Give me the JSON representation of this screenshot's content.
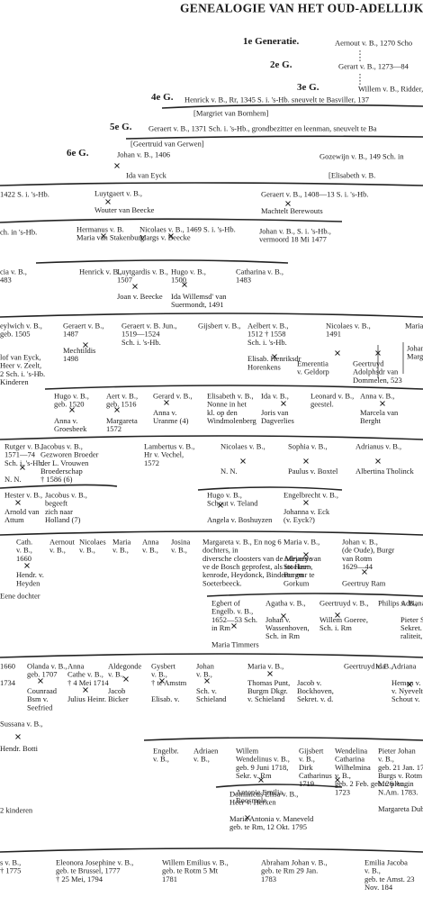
{
  "document": {
    "title": "GENEALOGIE VAN HET OUD-ADELLIJK",
    "generations": [
      {
        "label": "1e Generatie.",
        "person": "Aernout v. B., 1270 Scho"
      },
      {
        "label": "2e G.",
        "person": "Gerart v. B., 1273—84"
      },
      {
        "label": "3e G.",
        "person": "Willem v. B., Ridder, 1"
      },
      {
        "label": "4e G.",
        "person": "Henrick v. B., Rr, 1345 S. i. 's-Hb. sneuvelt te Basviller, 137"
      },
      {
        "label": "5e G.",
        "person": "Geraert v. B., 1371 Sch. i. 's-Hb., grondbezitter en leenman, sneuvelt te Ba"
      },
      {
        "label": "6e G.",
        "person": "Johan v. B., 1406"
      }
    ],
    "entries": [
      [
        "[Margriet van Bornhem]"
      ],
      [
        "[Geertruid van Gerwen]"
      ],
      [
        "Ida van Eyck"
      ],
      [
        "Gozewijn v. B., 149 Sch. in"
      ],
      [
        "[Elisabeth v. B."
      ],
      [
        "1422 S. i. 's-Hb."
      ],
      [
        "Luytgaert v. B.,",
        "",
        "Wouter van Beecke"
      ],
      [
        "Geraert v. B., 1408—13 S. i. 's-Hb.",
        "",
        "Machtelt Berewouts"
      ],
      [
        "ch. in 's-Hb."
      ],
      [
        "Hermanus v. B.",
        "Maria van Stakenburg"
      ],
      [
        "Nicolaes v. B., 1469 S. i. 's-Hb.",
        "Margs v. Beecke"
      ],
      [
        "Johan v. B., S. i. 's-Hb.,",
        "vermoord 18 Mi 1477"
      ],
      [
        "cia v. B.,",
        "483"
      ],
      [
        "Henrick v. B.,"
      ],
      [
        "Luytgardis v. B.,",
        "1507",
        "",
        "Joan v. Beecke"
      ],
      [
        "Hugo v. B.,",
        "1500",
        "",
        "Ida Willemsd' van",
        "Suermondt, 1491"
      ],
      [
        "Catharina v. B.,",
        "1483"
      ],
      [
        "eylwich v. B.,",
        "geb. 1505"
      ],
      [
        "Geraert v. B.,",
        "1487",
        "",
        "Mechtildis",
        "1498"
      ],
      [
        "Geraert v. B. Jun.,",
        "1519—1524",
        "Sch. i. 's-Hb."
      ],
      [
        "Gijsbert v. B.,"
      ],
      [
        "Aelbert v. B.,",
        "1512 † 1558",
        "Sch. i. 's-Hb.",
        "",
        "Elisab. Henriksdr",
        "Horenkens"
      ],
      [
        "Nicolaes v. B.,",
        "1491"
      ],
      [
        "Emerentia",
        "v. Geldorp"
      ],
      [
        "Geertruyd",
        "Adolphsdr van",
        "Dommelen, 523"
      ],
      [
        "Maria"
      ],
      [
        "Johan",
        "Marg"
      ],
      [
        "lof van Eyck,",
        "Heer v. Zeelt,",
        "2 Sch. i. 's-Hb.",
        "Kinderen"
      ],
      [
        "Hugo v. B.,",
        "geb. 1520",
        "",
        "Anna v.",
        "Groesbeek"
      ],
      [
        "Aert v. B.,",
        "geb. 1516",
        "",
        "Margareta",
        "1572"
      ],
      [
        "Gerard v. B.,",
        "",
        "Anna v.",
        "Uranme (4)"
      ],
      [
        "Elisabeth v. B.,",
        "Nonne in het",
        "kl. op den",
        "Windmolenberg"
      ],
      [
        "Ida v. B.,",
        "",
        "Joris van",
        "Dagverlies"
      ],
      [
        "Leonard v. B.,",
        "geestel."
      ],
      [
        "Anna v. B.,",
        "",
        "Marcela van",
        "Berght"
      ],
      [
        "Rutger v. B.,",
        "1571—74",
        "Sch. i. 's-Hb.",
        "",
        "N. N."
      ],
      [
        "Jacobus v. B.,",
        "Gezworen Broeder",
        "der L. Vrouwen",
        "Broederschap",
        "† 1586 (6)"
      ],
      [
        "Lambertus v. B.,",
        "Hr v. Vechel,",
        "1572"
      ],
      [
        "Nicolaes v. B.,",
        "",
        "",
        "N. N."
      ],
      [
        "Sophia v. B.,",
        "",
        "",
        "Paulus v. Boxtel"
      ],
      [
        "Adrianus v. B.,",
        "",
        "",
        "Albertina Tholinck"
      ],
      [
        "Hester v. B.,",
        "",
        "Arnold van",
        "Attum"
      ],
      [
        "Jacobus v. B.,",
        "begeeft",
        "zich naar",
        "Holland (7)"
      ],
      [
        "Hugo v. B.,",
        "Schout v. Teland",
        "",
        "Angela v. Boshuyzen"
      ],
      [
        "Engelbrecht v. B.,",
        "",
        "Johanna v. Eck",
        "(v. Eyck?)"
      ],
      [
        "Cath.",
        "v. B.,",
        "1660",
        "",
        "Hendr. v.",
        "Heyden"
      ],
      [
        "Aernout",
        "v. B.,"
      ],
      [
        "Nicolaes",
        "v. B.,"
      ],
      [
        "Maria",
        "v. B.,"
      ],
      [
        "Anna",
        "v. B.,"
      ],
      [
        "Josina",
        "v. B.,"
      ],
      [
        "Margareta v. B.,  En nog 6",
        "dochters, in",
        "diversche cloosters van de Meyerye",
        "ve de Bosch geprofest, als tot Heer-",
        "kenrode, Heydonck, Binderen en",
        "Soeterbeeck."
      ],
      [
        "Maria v. B.,",
        "",
        "Adriaen van",
        "Stockum,",
        "Burgmr te",
        "Gorkum"
      ],
      [
        "Johan v. B.,",
        "(de Oude), Burgr",
        "van Rotm",
        "1629—44",
        "",
        "Geertruy Ram"
      ],
      [
        "Eene dochter"
      ],
      [
        "Egbert of",
        "Engelb. v. B.,",
        "1652—53 Sch.",
        "in Rm",
        "",
        "Maria Timmers"
      ],
      [
        "Agatha v. B.,",
        "",
        "Johan v.",
        "Wassenhoven,",
        "Sch. in Rm"
      ],
      [
        "Geertruyd v. B.,",
        "",
        "Willem Goeree,",
        "Sch. i. Rm"
      ],
      [
        "Philips v. B.,"
      ],
      [
        "Adriana",
        "",
        "Pieter S",
        "Sekret. de",
        "raliteit,"
      ],
      [
        "1660",
        "",
        "1734"
      ],
      [
        "Olanda v. B.,",
        "geb. 1707",
        "",
        "Counraad",
        "Bsm v.",
        "Seefried"
      ],
      [
        "Anna",
        "Cathe v. B.,",
        "† 4 Mei 1714",
        "",
        "Julius Heinr."
      ],
      [
        "Aldegonde",
        "v. B.,",
        "",
        "Jacob",
        "Bicker"
      ],
      [
        "Gysbert",
        "v. B.,",
        "† te Amstm",
        "",
        "Elisab. v."
      ],
      [
        "Johan",
        "v. B.,",
        "",
        "Sch. v.",
        "Schieland"
      ],
      [
        "Maria v. B.,",
        "",
        "Thomas Punt,",
        "Burgm Dkgr.",
        "v. Schieland"
      ],
      [
        "",
        "",
        "Jacob v.",
        "Bockhoven,",
        "Sekret. v. d."
      ],
      [
        "Geertruyd v. B.,"
      ],
      [
        "Ida"
      ],
      [
        "Adriana",
        "",
        "Heman v. Z",
        "v. Nyevelt, S",
        "Schout v."
      ],
      [
        "Sussana v. B.,",
        "",
        "",
        "Hendr. Botti"
      ],
      [
        "Engelbr.",
        "v. B.,"
      ],
      [
        "Adriaen",
        "v. B.,"
      ],
      [
        "Willem",
        "Wendelinus v. B.,",
        "geb. 9 Juni 1718,",
        "Sekr. v. Rm",
        "",
        "Antonie Emilia",
        "Roosmale"
      ],
      [
        "Gijsbert",
        "v. B.,",
        "Dirk",
        "Catharinus",
        "1719"
      ],
      [
        "Wendelina",
        "Catharina",
        "Wilhelmina",
        "v. B.,",
        "geb. 2 Feb. geb. 26 Aug.",
        "1723"
      ],
      [
        "Pieter Johan",
        "v. B.,",
        "geb. 21 Jan. 1725",
        "Burgs v. Rotm",
        "Mr. plen. in",
        "N.Am. 1783.",
        "",
        "Margareta Dubois"
      ],
      [
        "2 kinderen"
      ],
      [
        "Dominicus Elisa v. B.,",
        "Heer v. Herxen",
        "",
        "Maria Antonia v. Maneveld",
        "geb. te Rm, 12 Okt. 1795"
      ],
      [
        "s v. B.,",
        "† 1775"
      ],
      [
        "Eleonora Josephine v. B.,",
        "geb. te Brussel, 1777",
        "† 25 Mei, 1794"
      ],
      [
        "Willem Emilius v. B.,",
        "geb. te Rotm 5 Mt",
        "1781"
      ],
      [
        "Abraham Johan v. B.,",
        "geb. te Rm 29 Jan.",
        "1783"
      ],
      [
        "Emilia Jacoba",
        "v. B.,",
        "geb. te Amst. 23",
        "Nov. 184"
      ]
    ]
  }
}
